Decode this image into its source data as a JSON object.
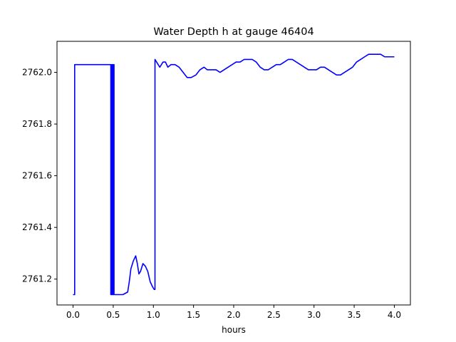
{
  "chart_data": {
    "type": "line",
    "title": "Water Depth h at gauge 46404",
    "xlabel": "hours",
    "ylabel": "",
    "xlim": [
      -0.2,
      4.2
    ],
    "ylim": [
      2761.1,
      2762.12
    ],
    "x_ticks": [
      0.0,
      0.5,
      1.0,
      1.5,
      2.0,
      2.5,
      3.0,
      3.5,
      4.0
    ],
    "x_tick_labels": [
      "0.0",
      "0.5",
      "1.0",
      "1.5",
      "2.0",
      "2.5",
      "3.0",
      "3.5",
      "4.0"
    ],
    "y_ticks": [
      2761.2,
      2761.4,
      2761.6,
      2761.8,
      2762.0
    ],
    "y_tick_labels": [
      "2761.2",
      "2761.4",
      "2761.6",
      "2761.8",
      "2762.0"
    ],
    "grid": false,
    "legend": "none",
    "series": [
      {
        "color": "#0000ff",
        "x": [
          0.0,
          0.02,
          0.02,
          0.47,
          0.47,
          0.48,
          0.48,
          0.49,
          0.49,
          0.5,
          0.5,
          0.51,
          0.51,
          0.55,
          0.62,
          0.68,
          0.7,
          0.72,
          0.75,
          0.78,
          0.8,
          0.82,
          0.84,
          0.87,
          0.9,
          0.93,
          0.96,
          0.99,
          1.01,
          1.02,
          1.02,
          1.04,
          1.08,
          1.12,
          1.15,
          1.18,
          1.22,
          1.27,
          1.32,
          1.37,
          1.42,
          1.47,
          1.53,
          1.58,
          1.63,
          1.67,
          1.72,
          1.78,
          1.83,
          1.88,
          1.93,
          1.98,
          2.03,
          2.08,
          2.13,
          2.18,
          2.23,
          2.28,
          2.33,
          2.38,
          2.43,
          2.48,
          2.53,
          2.58,
          2.63,
          2.68,
          2.73,
          2.78,
          2.83,
          2.88,
          2.93,
          2.98,
          3.03,
          3.08,
          3.13,
          3.18,
          3.23,
          3.28,
          3.33,
          3.38,
          3.43,
          3.48,
          3.53,
          3.58,
          3.63,
          3.68,
          3.73,
          3.78,
          3.83,
          3.88,
          3.93,
          3.98,
          4.0
        ],
        "y": [
          2761.14,
          2761.14,
          2762.03,
          2762.03,
          2761.14,
          2761.14,
          2762.03,
          2762.03,
          2761.14,
          2761.14,
          2762.03,
          2762.03,
          2761.14,
          2761.14,
          2761.14,
          2761.15,
          2761.19,
          2761.24,
          2761.27,
          2761.29,
          2761.26,
          2761.22,
          2761.23,
          2761.26,
          2761.25,
          2761.23,
          2761.19,
          2761.17,
          2761.16,
          2761.16,
          2762.05,
          2762.04,
          2762.02,
          2762.04,
          2762.04,
          2762.02,
          2762.03,
          2762.03,
          2762.02,
          2762.0,
          2761.98,
          2761.98,
          2761.99,
          2762.01,
          2762.02,
          2762.01,
          2762.01,
          2762.01,
          2762.0,
          2762.01,
          2762.02,
          2762.03,
          2762.04,
          2762.04,
          2762.05,
          2762.05,
          2762.05,
          2762.04,
          2762.02,
          2762.01,
          2762.01,
          2762.02,
          2762.03,
          2762.03,
          2762.04,
          2762.05,
          2762.05,
          2762.04,
          2762.03,
          2762.02,
          2762.01,
          2762.01,
          2762.01,
          2762.02,
          2762.02,
          2762.01,
          2762.0,
          2761.99,
          2761.99,
          2762.0,
          2762.01,
          2762.02,
          2762.04,
          2762.05,
          2762.06,
          2762.07,
          2762.07,
          2762.07,
          2762.07,
          2762.06,
          2762.06,
          2762.06,
          2762.06
        ]
      }
    ]
  }
}
